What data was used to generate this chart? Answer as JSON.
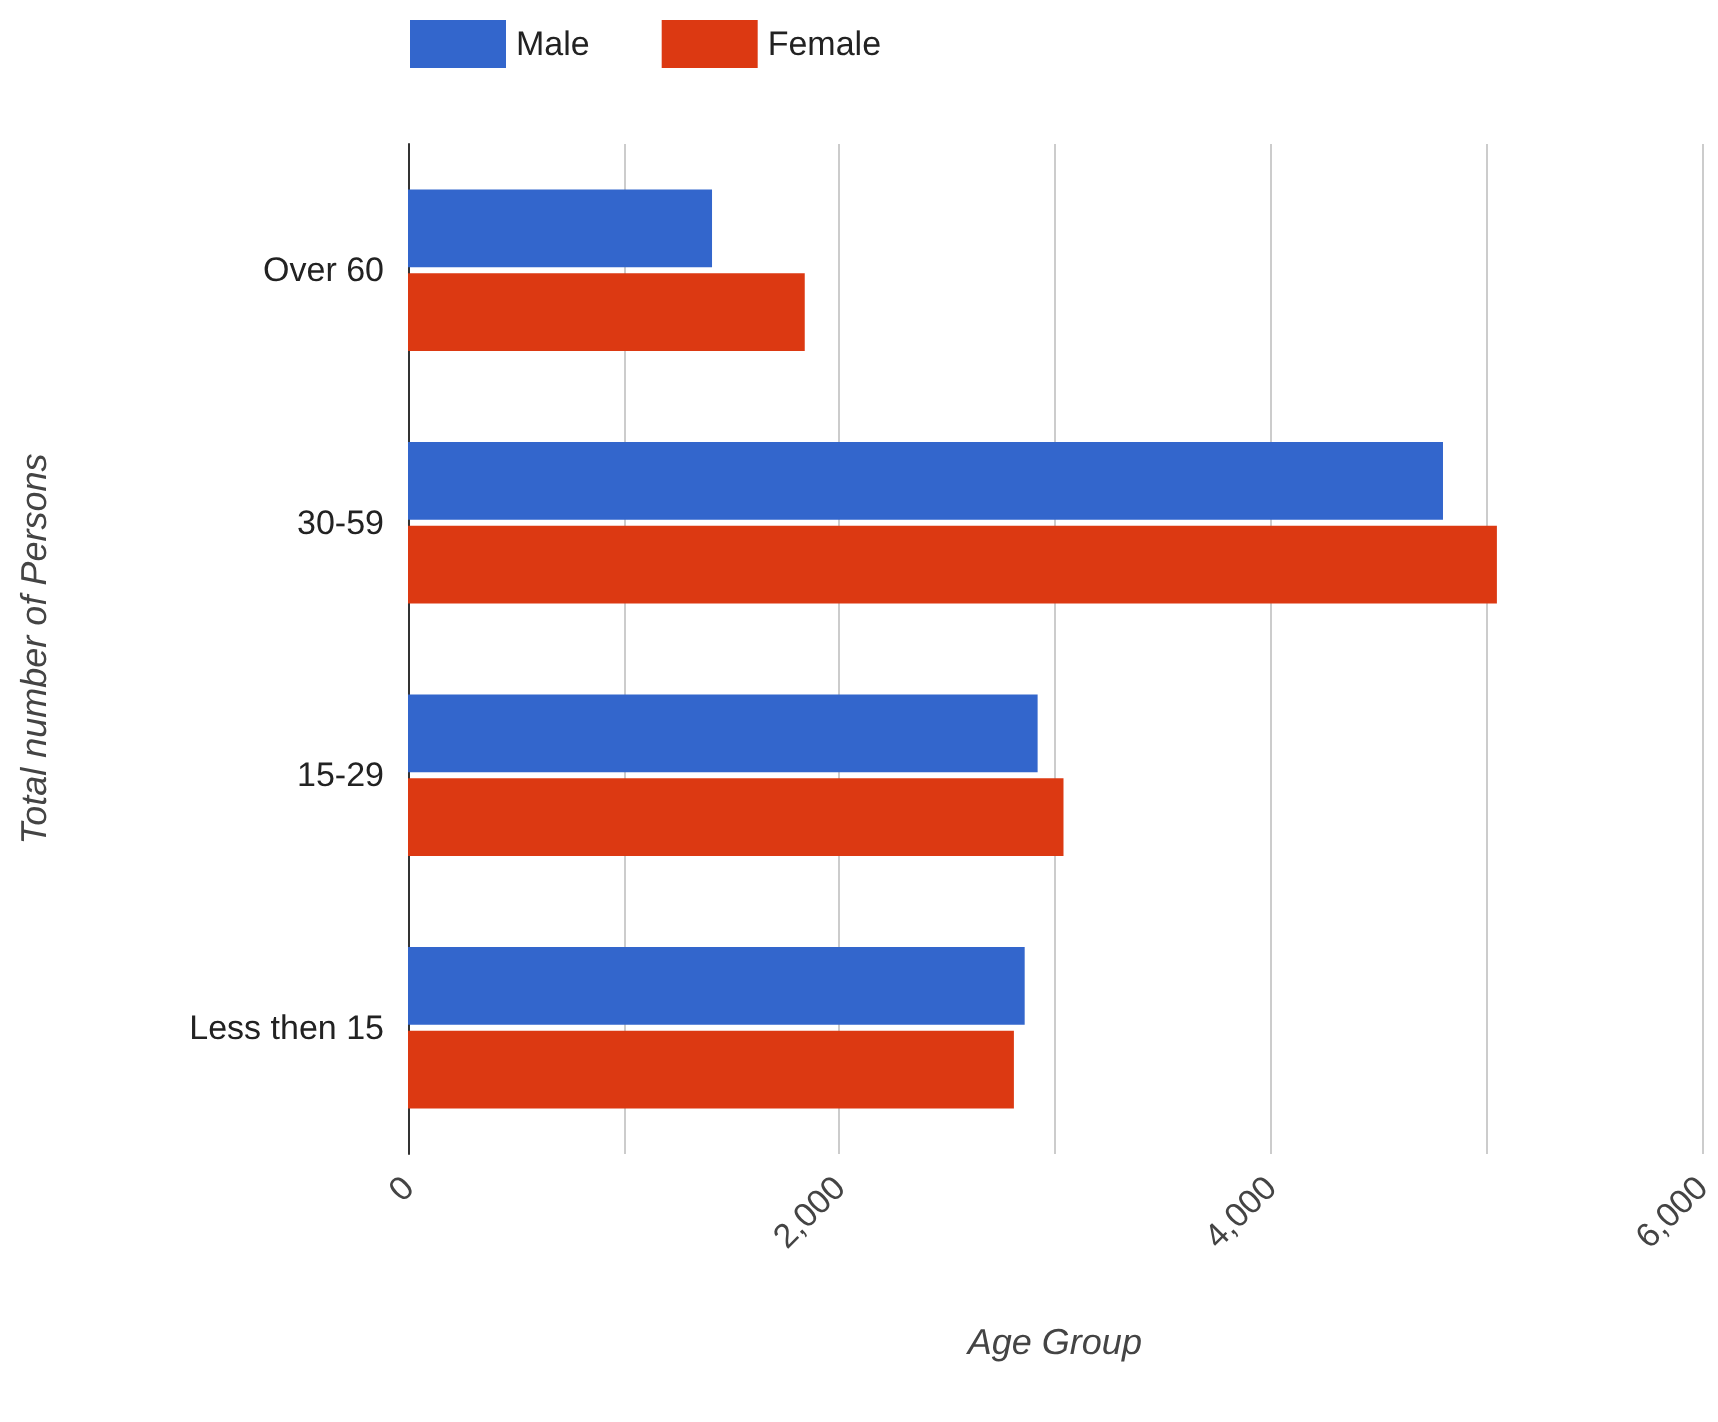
{
  "chart_data": {
    "type": "bar",
    "orientation": "horizontal",
    "xlabel": "Age Group",
    "ylabel": "Total number of Persons",
    "categories": [
      "Over 60",
      "30-59",
      "15-29",
      "Less then 15"
    ],
    "series": [
      {
        "name": "Male",
        "color": "#3366cc",
        "values": [
          1410,
          4800,
          2920,
          2860
        ]
      },
      {
        "name": "Female",
        "color": "#dc3912",
        "values": [
          1840,
          5050,
          3040,
          2810
        ]
      }
    ],
    "xlim": [
      0,
      6000
    ],
    "xticks": [
      0,
      {
        "value": 1000,
        "label": null
      },
      {
        "value": 2000,
        "label": "2,000"
      },
      {
        "value": 3000,
        "label": null
      },
      {
        "value": 4000,
        "label": "4,000"
      },
      {
        "value": 5000,
        "label": null
      },
      {
        "value": 6000,
        "label": "6,000"
      }
    ],
    "grid": "x",
    "legend": "top"
  }
}
